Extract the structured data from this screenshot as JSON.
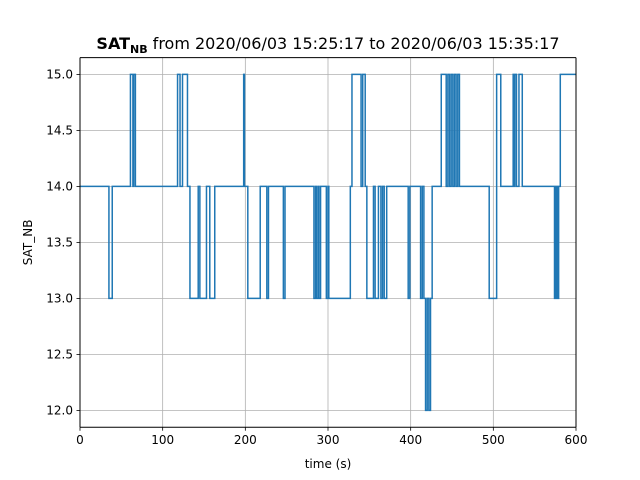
{
  "chart_data": {
    "type": "line",
    "step": true,
    "title": {
      "bold": "SAT",
      "bold_subscript": "NB",
      "rest": " from 2020/06/03 15:25:17 to 2020/06/03 15:35:17"
    },
    "xlabel": "time (s)",
    "ylabel": "SAT_NB",
    "xlim": [
      0,
      600
    ],
    "ylim": [
      11.85,
      15.15
    ],
    "xticks": [
      0,
      100,
      200,
      300,
      400,
      500,
      600
    ],
    "yticks": [
      12.0,
      12.5,
      13.0,
      13.5,
      14.0,
      14.5,
      15.0
    ],
    "xtick_labels": [
      "0",
      "100",
      "200",
      "300",
      "400",
      "500",
      "600"
    ],
    "ytick_labels": [
      "12.0",
      "12.5",
      "13.0",
      "13.5",
      "14.0",
      "14.5",
      "15.0"
    ],
    "grid": true,
    "color": "#1f77b4",
    "series": [
      {
        "points": [
          [
            0,
            14
          ],
          [
            35,
            14
          ],
          [
            35,
            13
          ],
          [
            39,
            13
          ],
          [
            39,
            14
          ],
          [
            61,
            14
          ],
          [
            61,
            15
          ],
          [
            64,
            15
          ],
          [
            64,
            14
          ],
          [
            65,
            14
          ],
          [
            65,
            15
          ],
          [
            67,
            15
          ],
          [
            67,
            14
          ],
          [
            118,
            14
          ],
          [
            118,
            15
          ],
          [
            121,
            15
          ],
          [
            121,
            14
          ],
          [
            124,
            14
          ],
          [
            124,
            15
          ],
          [
            130,
            15
          ],
          [
            130,
            14
          ],
          [
            133,
            14
          ],
          [
            133,
            13
          ],
          [
            143,
            13
          ],
          [
            143,
            14
          ],
          [
            145,
            14
          ],
          [
            145,
            13
          ],
          [
            153,
            13
          ],
          [
            153,
            14
          ],
          [
            157,
            14
          ],
          [
            157,
            13
          ],
          [
            163,
            13
          ],
          [
            163,
            14
          ],
          [
            198,
            14
          ],
          [
            198,
            15
          ],
          [
            199,
            15
          ],
          [
            199,
            14
          ],
          [
            203,
            14
          ],
          [
            203,
            13
          ],
          [
            218,
            13
          ],
          [
            218,
            14
          ],
          [
            226,
            14
          ],
          [
            226,
            13
          ],
          [
            228,
            13
          ],
          [
            228,
            14
          ],
          [
            246,
            14
          ],
          [
            246,
            13
          ],
          [
            248,
            13
          ],
          [
            248,
            14
          ],
          [
            283,
            14
          ],
          [
            283,
            13
          ],
          [
            285,
            13
          ],
          [
            285,
            14
          ],
          [
            286,
            14
          ],
          [
            286,
            13
          ],
          [
            288,
            13
          ],
          [
            288,
            14
          ],
          [
            289,
            14
          ],
          [
            289,
            13
          ],
          [
            291,
            13
          ],
          [
            291,
            14
          ],
          [
            298,
            14
          ],
          [
            298,
            13
          ],
          [
            300,
            13
          ],
          [
            300,
            14
          ],
          [
            301,
            14
          ],
          [
            301,
            13
          ],
          [
            327,
            13
          ],
          [
            327,
            14
          ],
          [
            329,
            14
          ],
          [
            329,
            15
          ],
          [
            340,
            15
          ],
          [
            340,
            14
          ],
          [
            342,
            14
          ],
          [
            342,
            15
          ],
          [
            345,
            15
          ],
          [
            345,
            14
          ],
          [
            347,
            14
          ],
          [
            347,
            13
          ],
          [
            355,
            13
          ],
          [
            355,
            14
          ],
          [
            357,
            14
          ],
          [
            357,
            13
          ],
          [
            361,
            13
          ],
          [
            361,
            14
          ],
          [
            364,
            14
          ],
          [
            364,
            13
          ],
          [
            366,
            13
          ],
          [
            366,
            14
          ],
          [
            368,
            14
          ],
          [
            368,
            13
          ],
          [
            371,
            13
          ],
          [
            371,
            14
          ],
          [
            397,
            14
          ],
          [
            397,
            13
          ],
          [
            399,
            13
          ],
          [
            399,
            14
          ],
          [
            412,
            14
          ],
          [
            412,
            13
          ],
          [
            414,
            13
          ],
          [
            414,
            14
          ],
          [
            416,
            14
          ],
          [
            416,
            13
          ],
          [
            418,
            13
          ],
          [
            418,
            12
          ],
          [
            420,
            12
          ],
          [
            420,
            13
          ],
          [
            422,
            13
          ],
          [
            422,
            12
          ],
          [
            424,
            12
          ],
          [
            424,
            13
          ],
          [
            426,
            13
          ],
          [
            426,
            14
          ],
          [
            437,
            14
          ],
          [
            437,
            15
          ],
          [
            443,
            15
          ],
          [
            443,
            14
          ],
          [
            445,
            14
          ],
          [
            445,
            15
          ],
          [
            447,
            15
          ],
          [
            447,
            14
          ],
          [
            449,
            14
          ],
          [
            449,
            15
          ],
          [
            451,
            15
          ],
          [
            451,
            14
          ],
          [
            453,
            14
          ],
          [
            453,
            15
          ],
          [
            455,
            15
          ],
          [
            455,
            14
          ],
          [
            457,
            14
          ],
          [
            457,
            15
          ],
          [
            459,
            15
          ],
          [
            459,
            14
          ],
          [
            495,
            14
          ],
          [
            495,
            13
          ],
          [
            504,
            13
          ],
          [
            504,
            15
          ],
          [
            509,
            15
          ],
          [
            509,
            14
          ],
          [
            524,
            14
          ],
          [
            524,
            15
          ],
          [
            525,
            15
          ],
          [
            525,
            14
          ],
          [
            526,
            14
          ],
          [
            526,
            15
          ],
          [
            528,
            15
          ],
          [
            528,
            14
          ],
          [
            531,
            14
          ],
          [
            531,
            15
          ],
          [
            535,
            15
          ],
          [
            535,
            14
          ],
          [
            574,
            14
          ],
          [
            574,
            13
          ],
          [
            575,
            13
          ],
          [
            575,
            14
          ],
          [
            576,
            14
          ],
          [
            576,
            13
          ],
          [
            577,
            13
          ],
          [
            577,
            14
          ],
          [
            578,
            14
          ],
          [
            578,
            13
          ],
          [
            579,
            13
          ],
          [
            579,
            14
          ],
          [
            581,
            14
          ],
          [
            581,
            15
          ],
          [
            600,
            15
          ]
        ]
      }
    ]
  }
}
